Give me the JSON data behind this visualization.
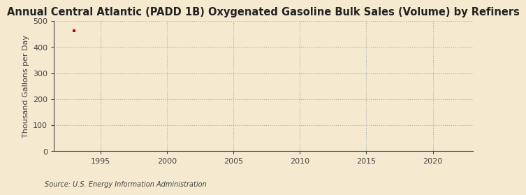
{
  "title": "Annual Central Atlantic (PADD 1B) Oxygenated Gasoline Bulk Sales (Volume) by Refiners",
  "ylabel": "Thousand Gallons per Day",
  "source": "Source: U.S. Energy Information Administration",
  "background_color": "#f5ead0",
  "plot_bg_color": "#f5ead0",
  "data_x": [
    1993
  ],
  "data_y": [
    462
  ],
  "marker_color": "#c00000",
  "marker": "s",
  "marker_size": 3.5,
  "xlim": [
    1991.5,
    2023
  ],
  "ylim": [
    0,
    500
  ],
  "xticks": [
    1995,
    2000,
    2005,
    2010,
    2015,
    2020
  ],
  "yticks": [
    0,
    100,
    200,
    300,
    400,
    500
  ],
  "grid_color": "#aaaaaa",
  "axis_color": "#444444",
  "title_fontsize": 10.5,
  "label_fontsize": 8,
  "tick_fontsize": 8,
  "source_fontsize": 7
}
